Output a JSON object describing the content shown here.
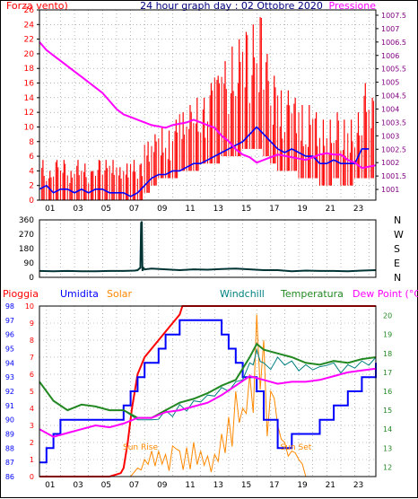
{
  "header": {
    "left_label": "Forza vento)",
    "title": "24 hour graph day : 02 Ottobre 2020",
    "right_label": "Pressione"
  },
  "colors": {
    "wind": "#ff0000",
    "wind_avg": "#0000ff",
    "pressure": "#ff00ff",
    "direction": "#003333",
    "rain": "#ff0000",
    "humidity": "#0000ff",
    "solar": "#ff8800",
    "windchill": "#008080",
    "temperature": "#228822",
    "dewpoint": "#ff00ff",
    "grid": "#888888",
    "axis_left": "#000080",
    "axis_right": "#800080"
  },
  "chart_data": [
    {
      "type": "line",
      "panel": "wind-pressure",
      "x_ticks": [
        "01",
        "03",
        "05",
        "07",
        "09",
        "11",
        "13",
        "15",
        "17",
        "19",
        "21",
        "23"
      ],
      "xlim": [
        0,
        24
      ],
      "y_left": {
        "label": "Forza vento)",
        "ticks": [
          0,
          2,
          4,
          6,
          8,
          10,
          12,
          14,
          16,
          18,
          20,
          22,
          24,
          26
        ],
        "ylim": [
          0,
          26
        ]
      },
      "y_right": {
        "label": "Pressione",
        "ticks": [
          1001,
          1001.5,
          1002,
          1002.5,
          1003,
          1003.5,
          1004,
          1004.5,
          1005,
          1005.5,
          1006,
          1006.5,
          1007,
          1007.5
        ],
        "ylim": [
          1000.6,
          1007.7
        ]
      },
      "series": [
        {
          "name": "Forza vento)",
          "axis": "left",
          "style": "bars",
          "x": [
            0,
            0.5,
            1,
            1.5,
            2,
            2.5,
            3,
            3.5,
            4,
            4.5,
            5,
            5.5,
            6,
            6.5,
            7,
            7.5,
            8,
            8.5,
            9,
            9.5,
            10,
            10.5,
            11,
            11.5,
            12,
            12.5,
            13,
            13.5,
            14,
            14.5,
            15,
            15.5,
            16,
            16.5,
            17,
            17.5,
            18,
            18.5,
            19,
            19.5,
            20,
            20.5,
            21,
            21.5,
            22,
            22.5,
            23,
            23.5
          ],
          "values": [
            5.5,
            4,
            5.5,
            5.5,
            4,
            5.5,
            5,
            4,
            5.5,
            5.5,
            5.5,
            4.5,
            5,
            5.5,
            5,
            8,
            9,
            10,
            9.5,
            11,
            12,
            13,
            14,
            14,
            16,
            17,
            19,
            21,
            22,
            23,
            24,
            25,
            20,
            17,
            15,
            15,
            14,
            13,
            13,
            12,
            11,
            11,
            12,
            11,
            11,
            12,
            16,
            14
          ],
          "min": [
            0,
            0,
            0,
            0,
            0,
            0,
            0,
            0,
            0,
            0,
            0,
            0,
            0,
            0,
            0,
            1,
            2,
            3,
            3,
            3,
            4,
            4,
            4,
            5,
            5,
            5,
            6,
            6,
            6,
            7,
            7,
            7,
            6,
            5,
            4,
            4,
            4,
            3,
            3,
            3,
            2,
            2,
            3,
            2,
            2,
            3,
            3,
            3
          ]
        },
        {
          "name": "wind average",
          "axis": "left",
          "x": [
            0,
            0.5,
            1,
            1.5,
            2,
            2.5,
            3,
            3.5,
            4,
            4.5,
            5,
            5.5,
            6,
            6.5,
            7,
            7.5,
            8,
            8.5,
            9,
            9.5,
            10,
            10.5,
            11,
            11.5,
            12,
            12.5,
            13,
            13.5,
            14,
            14.5,
            15,
            15.5,
            16,
            16.5,
            17,
            17.5,
            18,
            18.5,
            19,
            19.5,
            20,
            20.5,
            21,
            21.5,
            22,
            22.5,
            23,
            23.5
          ],
          "values": [
            1.5,
            2,
            1,
            1.5,
            1.5,
            1,
            1.5,
            1,
            1.5,
            1.5,
            1,
            1,
            1,
            0.5,
            1,
            2,
            3,
            3.5,
            3.5,
            4,
            4,
            4.5,
            5,
            5,
            5.5,
            6,
            6.5,
            7,
            7.5,
            8,
            9,
            10,
            9,
            8,
            7,
            6.5,
            7,
            6.5,
            6,
            6,
            5,
            5,
            5.5,
            5,
            5,
            5,
            7,
            7
          ]
        },
        {
          "name": "Pressione",
          "axis": "right",
          "x": [
            0,
            0.5,
            1,
            1.5,
            2,
            2.5,
            3,
            3.5,
            4,
            4.5,
            5,
            5.5,
            6,
            6.5,
            7,
            7.5,
            8,
            8.5,
            9,
            9.5,
            10,
            10.5,
            11,
            11.5,
            12,
            12.5,
            13,
            13.5,
            14,
            14.5,
            15,
            15.5,
            16,
            16.5,
            17,
            17.5,
            18,
            18.5,
            19,
            19.5,
            20,
            20.5,
            21,
            21.5,
            22,
            22.5,
            23,
            23.5,
            24
          ],
          "values": [
            1006.5,
            1006.2,
            1006.0,
            1005.8,
            1005.6,
            1005.4,
            1005.2,
            1005.0,
            1004.8,
            1004.6,
            1004.3,
            1004.0,
            1003.8,
            1003.7,
            1003.6,
            1003.5,
            1003.4,
            1003.35,
            1003.3,
            1003.4,
            1003.45,
            1003.5,
            1003.6,
            1003.5,
            1003.4,
            1003.3,
            1003.0,
            1002.8,
            1002.5,
            1002.3,
            1002.2,
            1002.0,
            1002.1,
            1002.2,
            1002.3,
            1002.25,
            1002.2,
            1002.15,
            1002.1,
            1002.2,
            1002.3,
            1002.35,
            1002.3,
            1002.3,
            1002.1,
            1002.0,
            1001.8,
            1001.85,
            1001.9
          ]
        }
      ]
    },
    {
      "type": "line",
      "panel": "wind-direction",
      "xlim": [
        0,
        24
      ],
      "y_left": {
        "ticks": [
          0,
          90,
          180,
          270,
          360
        ],
        "ylim": [
          0,
          360
        ]
      },
      "y_right": {
        "ticks": [
          "N",
          "W",
          "S",
          "E",
          "N"
        ]
      },
      "series": [
        {
          "name": "direction",
          "x": [
            0,
            1,
            2,
            3,
            4,
            5,
            6,
            6.8,
            7,
            7.2,
            7.25,
            7.3,
            7.35,
            7.4,
            7.5,
            8,
            9,
            10,
            11,
            12,
            13,
            14,
            15,
            16,
            17,
            18,
            19,
            20,
            21,
            22,
            23,
            24
          ],
          "values": [
            40,
            38,
            40,
            38,
            38,
            40,
            40,
            42,
            45,
            60,
            340,
            350,
            40,
            60,
            50,
            55,
            50,
            45,
            50,
            48,
            52,
            55,
            50,
            45,
            45,
            38,
            42,
            40,
            40,
            38,
            42,
            45
          ]
        }
      ]
    },
    {
      "type": "line",
      "panel": "weather",
      "x_ticks": [
        "01",
        "03",
        "05",
        "07",
        "09",
        "11",
        "13",
        "15",
        "17",
        "19",
        "21",
        "23"
      ],
      "xlim": [
        0,
        24
      ],
      "labels": [
        "Pioggia",
        "Umidita",
        "Solar",
        "Windchill",
        "Temperatura",
        "Dew Point (°C)"
      ],
      "annotations": [
        "Sun Rise",
        "Sun Set"
      ],
      "y_left_outer": {
        "label": "Umidita",
        "ticks": [
          86,
          87,
          88,
          89,
          90,
          91,
          92,
          93,
          94,
          95,
          96,
          97,
          98
        ]
      },
      "y_left_inner": {
        "label": "Pioggia",
        "ticks": [
          0,
          1,
          2,
          3,
          4,
          5,
          6,
          7,
          8,
          9,
          10
        ]
      },
      "y_right": {
        "label": "Dew Point (°C)",
        "ticks": [
          12,
          13,
          14,
          15,
          16,
          17,
          18,
          19,
          20
        ],
        "ylim": [
          11.5,
          20.5
        ]
      },
      "series": [
        {
          "name": "Pioggia",
          "axis": "left_inner",
          "x": [
            0,
            4,
            5,
            5.8,
            6,
            6.3,
            6.6,
            7,
            7.5,
            8,
            8.5,
            9,
            9.5,
            10,
            10.2,
            11,
            12,
            13,
            14,
            15,
            16,
            17,
            18,
            19,
            20,
            21,
            22,
            23,
            24
          ],
          "values": [
            0,
            0,
            0,
            0.2,
            0.5,
            2,
            4,
            6,
            7,
            7.5,
            8,
            8.5,
            9,
            9.5,
            10,
            10,
            10,
            10,
            10,
            10,
            10,
            10,
            10,
            10,
            10,
            10,
            10,
            10,
            10
          ]
        },
        {
          "name": "Umidita",
          "axis": "left_outer",
          "style": "step",
          "x": [
            0,
            0.5,
            1,
            1.5,
            2,
            3,
            4,
            5,
            6,
            6.5,
            7,
            7.5,
            8,
            8.5,
            9,
            10,
            11,
            12,
            13,
            13.5,
            14,
            14.5,
            15,
            15.5,
            16,
            17,
            18,
            19,
            20,
            21,
            22,
            23,
            24
          ],
          "values": [
            87,
            88,
            89,
            90,
            90,
            90,
            90,
            90,
            91,
            92,
            93,
            94,
            94,
            95,
            96,
            97,
            97,
            97,
            96,
            95,
            94,
            93,
            93,
            92,
            90,
            88,
            89,
            89,
            90,
            91,
            92,
            93,
            94
          ]
        },
        {
          "name": "Solar",
          "axis": "left_inner",
          "x": [
            0,
            6.5,
            7,
            7.5,
            8,
            8.5,
            9,
            9.5,
            10,
            10.5,
            11,
            11.5,
            12,
            12.5,
            13,
            13.5,
            14,
            14.5,
            15,
            15.5,
            16,
            16.5,
            17,
            17.5,
            18,
            18.5,
            19,
            20,
            24
          ],
          "values": [
            0,
            0,
            0.5,
            1,
            1.5,
            1.5,
            1.3,
            1.8,
            1.5,
            1.7,
            2,
            1.5,
            1.2,
            1.3,
            2.5,
            3.5,
            5,
            4,
            6,
            9.5,
            8,
            5,
            3,
            2,
            1.5,
            1,
            0,
            0,
            0
          ]
        },
        {
          "name": "Windchill",
          "axis": "right",
          "x": [
            0,
            1,
            2,
            3,
            4,
            5,
            6,
            7,
            8,
            9,
            10,
            11,
            12,
            13,
            14,
            15,
            15.5,
            16,
            17,
            18,
            19,
            20,
            21,
            22,
            23,
            24
          ],
          "values": [
            16.5,
            15.5,
            15,
            15.3,
            15.2,
            15,
            15,
            14.5,
            14.5,
            15,
            15.3,
            15.5,
            15.8,
            16.2,
            16.5,
            17.5,
            18.2,
            17.5,
            17.8,
            17.6,
            17.4,
            17.3,
            17.5,
            17.4,
            17.6,
            17.8
          ]
        },
        {
          "name": "Temperatura",
          "axis": "right",
          "x": [
            0,
            1,
            2,
            3,
            4,
            5,
            6,
            7,
            8,
            9,
            10,
            11,
            12,
            13,
            14,
            15,
            15.5,
            16,
            17,
            18,
            19,
            20,
            21,
            22,
            23,
            24
          ],
          "values": [
            16.5,
            15.5,
            15,
            15.3,
            15.2,
            15,
            15,
            14.6,
            14.6,
            15,
            15.4,
            15.6,
            15.9,
            16.3,
            16.6,
            17.8,
            18.5,
            18.2,
            18,
            17.8,
            17.5,
            17.4,
            17.6,
            17.5,
            17.7,
            17.8
          ]
        },
        {
          "name": "Dew Point (°C)",
          "axis": "right",
          "x": [
            0,
            1,
            2,
            3,
            4,
            5,
            6,
            7,
            8,
            9,
            10,
            11,
            12,
            13,
            14,
            15,
            16,
            17,
            18,
            19,
            20,
            21,
            22,
            23,
            24
          ],
          "values": [
            14,
            13.6,
            13.8,
            14,
            14.2,
            14.1,
            14.3,
            14.6,
            14.6,
            14.9,
            15,
            15.2,
            15.4,
            15.8,
            16.3,
            16.8,
            16.6,
            16.4,
            16.5,
            16.5,
            16.6,
            16.8,
            17,
            17.1,
            17.2
          ]
        }
      ]
    }
  ]
}
